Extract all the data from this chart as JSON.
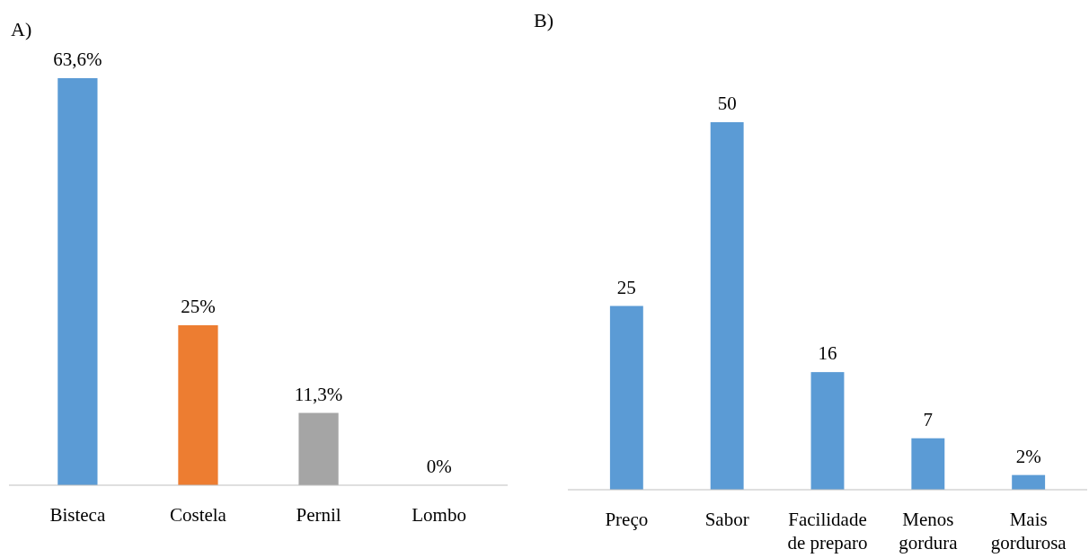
{
  "chart_data": [
    {
      "type": "bar",
      "title": "A)",
      "categories": [
        "Bisteca",
        "Costela",
        "Pernil",
        "Lombo"
      ],
      "values": [
        63.6,
        25,
        11.3,
        0
      ],
      "colors": [
        "#5b9bd5",
        "#ed7d31",
        "#a5a5a5",
        "#ffc000"
      ],
      "value_labels": [
        "63,6%",
        "25%",
        "11,3%",
        "0%"
      ],
      "grid": false
    },
    {
      "type": "bar",
      "title": "B)",
      "categories": [
        "Preço",
        "Sabor",
        "Facilidade de preparo",
        "Menos gordura",
        "Mais gordurosa"
      ],
      "values": [
        25,
        50,
        16,
        7,
        2
      ],
      "color": "#5b9bd5",
      "value_labels": [
        "25",
        "50",
        "16",
        "7",
        "2%"
      ],
      "grid": false
    }
  ]
}
